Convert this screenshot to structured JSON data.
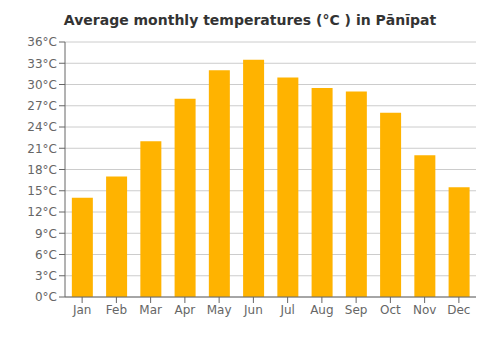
{
  "chart_data": {
    "type": "bar",
    "title": "Average monthly temperatures (°C ) in Pānīpat",
    "categories": [
      "Jan",
      "Feb",
      "Mar",
      "Apr",
      "May",
      "Jun",
      "Jul",
      "Aug",
      "Sep",
      "Oct",
      "Nov",
      "Dec"
    ],
    "values": [
      14,
      17,
      22,
      28,
      32,
      33.5,
      31,
      29.5,
      29,
      26,
      20,
      15.5
    ],
    "color": "#FFB300",
    "ylim": [
      0,
      36
    ],
    "yticks": [
      {
        "value": 0,
        "label": "0°C"
      },
      {
        "value": 3,
        "label": "3°C"
      },
      {
        "value": 6,
        "label": "6°C"
      },
      {
        "value": 9,
        "label": "9°C"
      },
      {
        "value": 12,
        "label": "12°C"
      },
      {
        "value": 15,
        "label": "15°C"
      },
      {
        "value": 18,
        "label": "18°C"
      },
      {
        "value": 21,
        "label": "21°C"
      },
      {
        "value": 24,
        "label": "24°C"
      },
      {
        "value": 27,
        "label": "27°C"
      },
      {
        "value": 30,
        "label": "30°C"
      },
      {
        "value": 33,
        "label": "33°C"
      },
      {
        "value": 36,
        "label": "36°C"
      }
    ],
    "grid": true
  }
}
